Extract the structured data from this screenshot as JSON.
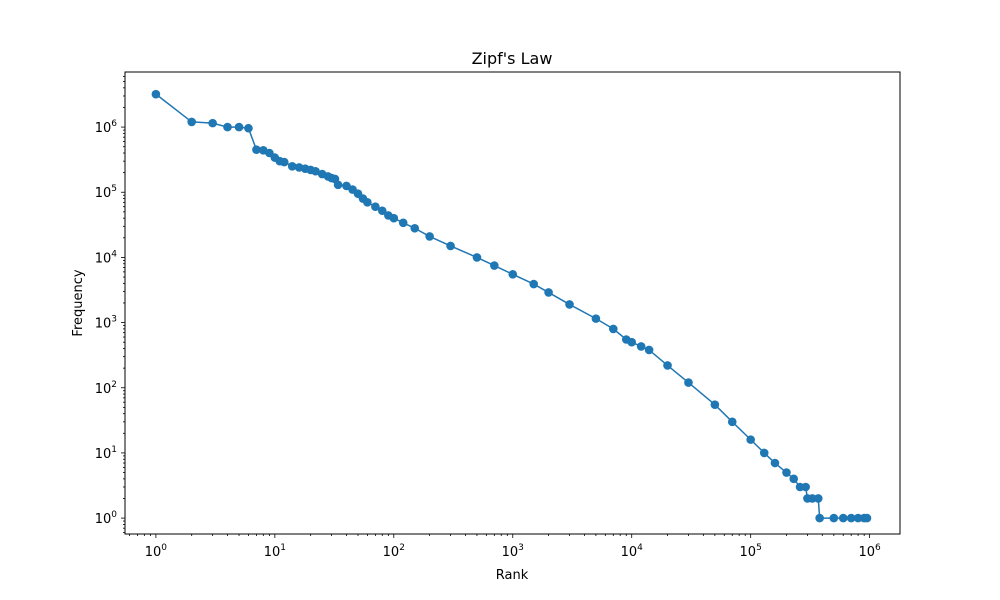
{
  "chart_data": {
    "type": "line",
    "title": "Zipf's Law",
    "xlabel": "Rank",
    "ylabel": "Frequency",
    "xscale": "log",
    "yscale": "log",
    "xlim": [
      0.55,
      1800000
    ],
    "ylim": [
      0.57,
      7000000
    ],
    "grid": false,
    "marker": "circle",
    "color": "#1f77b4",
    "x_ticks": [
      {
        "base": "10",
        "exp": "0",
        "value": 1
      },
      {
        "base": "10",
        "exp": "1",
        "value": 10
      },
      {
        "base": "10",
        "exp": "2",
        "value": 100
      },
      {
        "base": "10",
        "exp": "3",
        "value": 1000
      },
      {
        "base": "10",
        "exp": "4",
        "value": 10000
      },
      {
        "base": "10",
        "exp": "5",
        "value": 100000
      },
      {
        "base": "10",
        "exp": "6",
        "value": 1000000
      }
    ],
    "y_ticks": [
      {
        "base": "10",
        "exp": "0",
        "value": 1
      },
      {
        "base": "10",
        "exp": "1",
        "value": 10
      },
      {
        "base": "10",
        "exp": "2",
        "value": 100
      },
      {
        "base": "10",
        "exp": "3",
        "value": 1000
      },
      {
        "base": "10",
        "exp": "4",
        "value": 10000
      },
      {
        "base": "10",
        "exp": "5",
        "value": 100000
      },
      {
        "base": "10",
        "exp": "6",
        "value": 1000000
      }
    ],
    "series": [
      {
        "points": [
          [
            1,
            3200000
          ],
          [
            2,
            1200000
          ],
          [
            3,
            1150000
          ],
          [
            4,
            1000000
          ],
          [
            5,
            1000000
          ],
          [
            6,
            960000
          ],
          [
            7,
            450000
          ],
          [
            8,
            440000
          ],
          [
            9,
            400000
          ],
          [
            10,
            340000
          ],
          [
            11,
            300000
          ],
          [
            12,
            290000
          ],
          [
            14,
            250000
          ],
          [
            16,
            240000
          ],
          [
            18,
            230000
          ],
          [
            20,
            220000
          ],
          [
            22,
            210000
          ],
          [
            25,
            190000
          ],
          [
            28,
            175000
          ],
          [
            30,
            165000
          ],
          [
            32,
            160000
          ],
          [
            34,
            130000
          ],
          [
            40,
            125000
          ],
          [
            45,
            110000
          ],
          [
            50,
            95000
          ],
          [
            55,
            80000
          ],
          [
            60,
            70000
          ],
          [
            70,
            60000
          ],
          [
            80,
            52000
          ],
          [
            90,
            44000
          ],
          [
            100,
            40000
          ],
          [
            120,
            34000
          ],
          [
            150,
            28000
          ],
          [
            200,
            21000
          ],
          [
            300,
            15000
          ],
          [
            500,
            10000
          ],
          [
            700,
            7500
          ],
          [
            1000,
            5500
          ],
          [
            1500,
            3900
          ],
          [
            2000,
            2900
          ],
          [
            3000,
            1900
          ],
          [
            5000,
            1150
          ],
          [
            7000,
            800
          ],
          [
            9000,
            550
          ],
          [
            10000,
            500
          ],
          [
            12000,
            430
          ],
          [
            14000,
            380
          ],
          [
            20000,
            220
          ],
          [
            30000,
            120
          ],
          [
            50000,
            55
          ],
          [
            70000,
            30
          ],
          [
            100000,
            16
          ],
          [
            130000,
            10
          ],
          [
            160000,
            7
          ],
          [
            200000,
            5
          ],
          [
            230000,
            4
          ],
          [
            260000,
            3
          ],
          [
            290000,
            3
          ],
          [
            300000,
            2
          ],
          [
            330000,
            2
          ],
          [
            370000,
            2
          ],
          [
            380000,
            1
          ],
          [
            500000,
            1
          ],
          [
            600000,
            1
          ],
          [
            700000,
            1
          ],
          [
            800000,
            1
          ],
          [
            900000,
            1
          ],
          [
            950000,
            1
          ]
        ]
      }
    ]
  }
}
